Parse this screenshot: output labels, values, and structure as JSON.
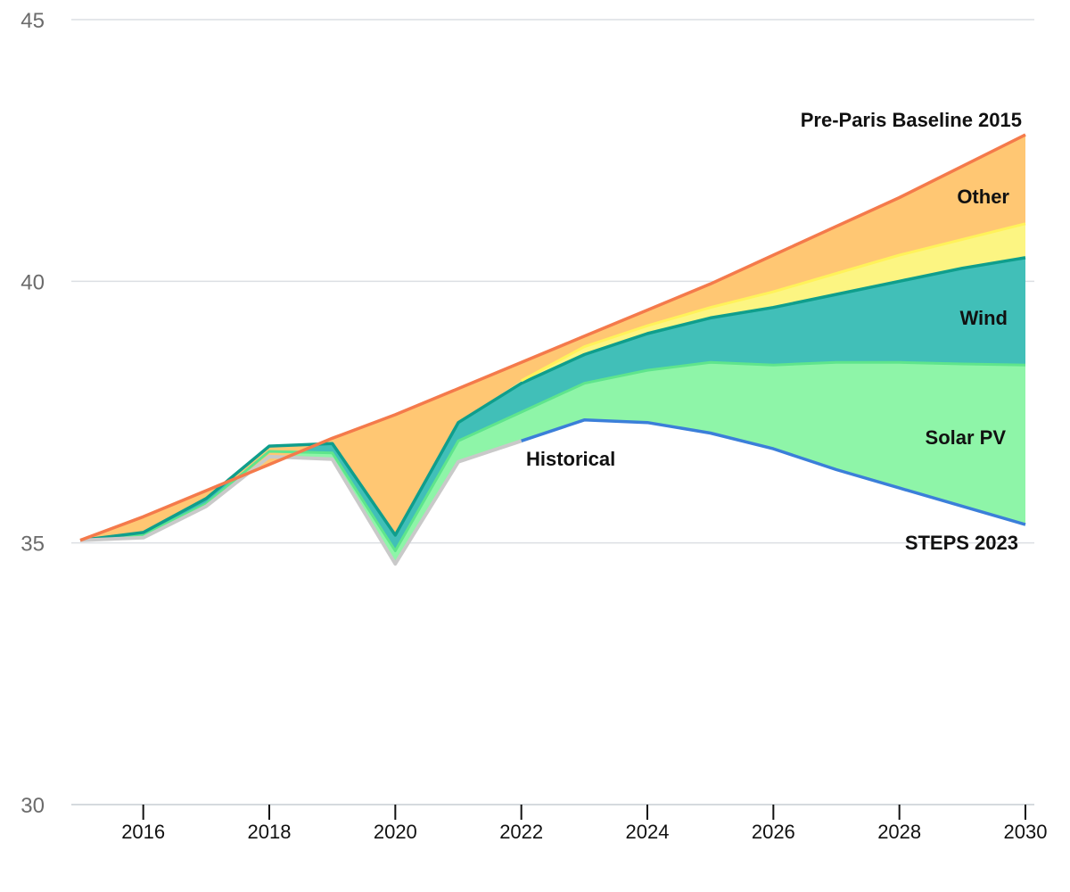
{
  "chart_data": {
    "type": "area",
    "x_ticks": [
      "2016",
      "2018",
      "2020",
      "2022",
      "2024",
      "2026",
      "2028",
      "2030"
    ],
    "y_ticks": [
      "30",
      "35",
      "40",
      "45"
    ],
    "xlim": [
      2015,
      2030
    ],
    "ylim": [
      30,
      45
    ],
    "grid": "horizontal",
    "x": [
      2015,
      2016,
      2017,
      2018,
      2019,
      2020,
      2021,
      2022,
      2023,
      2024,
      2025,
      2026,
      2027,
      2028,
      2029,
      2030
    ],
    "lines": {
      "historical": {
        "label": "Historical",
        "x": [
          2015,
          2016,
          2017,
          2018,
          2019,
          2020,
          2021,
          2022
        ],
        "y": [
          35.05,
          35.1,
          35.7,
          36.65,
          36.6,
          34.6,
          36.55,
          36.95
        ]
      },
      "steps": {
        "label": "STEPS 2023",
        "x": [
          2022,
          2023,
          2024,
          2025,
          2026,
          2027,
          2028,
          2029,
          2030
        ],
        "y": [
          36.95,
          37.35,
          37.3,
          37.1,
          36.8,
          36.4,
          36.05,
          35.7,
          35.35
        ]
      },
      "baseline": {
        "label": "Pre-Paris Baseline 2015",
        "x": [
          2015,
          2016,
          2017,
          2018,
          2019,
          2020,
          2021,
          2022,
          2023,
          2024,
          2025,
          2026,
          2027,
          2028,
          2029,
          2030
        ],
        "y": [
          35.05,
          35.5,
          36.0,
          36.5,
          37.0,
          37.45,
          37.95,
          38.45,
          38.95,
          39.45,
          39.95,
          40.5,
          41.05,
          41.6,
          42.2,
          42.8
        ]
      }
    },
    "stack_tops": {
      "solar_pv": [
        35.05,
        35.15,
        35.75,
        36.75,
        36.72,
        34.85,
        36.95,
        37.5,
        38.05,
        38.3,
        38.45,
        38.4,
        38.45,
        38.45,
        38.42,
        38.4
      ],
      "wind": [
        35.05,
        35.2,
        35.85,
        36.85,
        36.9,
        35.15,
        37.3,
        38.05,
        38.6,
        39.0,
        39.3,
        39.5,
        39.75,
        40.0,
        40.25,
        40.45
      ],
      "other": [
        35.05,
        35.2,
        35.85,
        36.85,
        36.9,
        35.15,
        37.3,
        38.1,
        38.75,
        39.15,
        39.5,
        39.8,
        40.15,
        40.5,
        40.8,
        41.1
      ]
    },
    "series": [
      {
        "name": "Solar PV",
        "fill": "#8ef5a8",
        "stroke": "#5fe58c"
      },
      {
        "name": "Wind",
        "fill": "#41bfb8",
        "stroke": "#0f9e8c"
      },
      {
        "name": "Other",
        "fill": "#fcf582",
        "stroke": "#fff25a"
      },
      {
        "name": "Pre-Paris Baseline 2015",
        "fill": "#ffc773",
        "stroke": "#f47a4b"
      }
    ],
    "colors": {
      "historical": "#c9c9c9",
      "steps": "#3b7fd9",
      "baseline": "#f47a4b",
      "grid": "#dcdfe3"
    }
  }
}
